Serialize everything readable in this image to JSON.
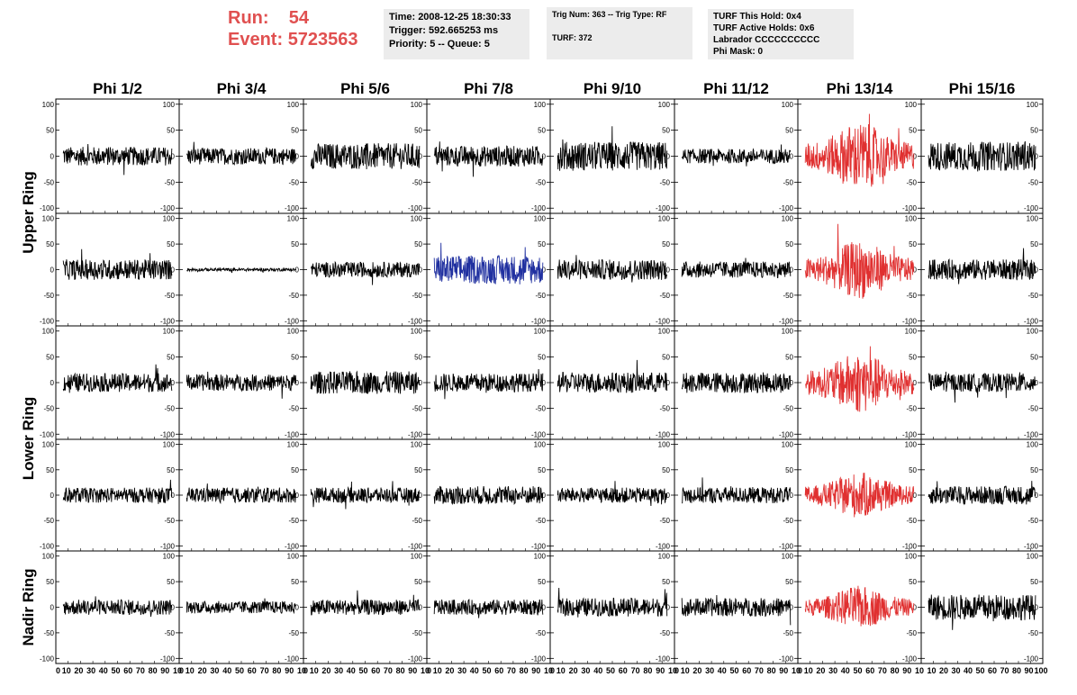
{
  "header": {
    "run_label": "Run:",
    "run_value": "54",
    "event_label": "Event:",
    "event_value": "5723563",
    "time_box": [
      "Time: 2008-12-25 18:30:33",
      "Trigger: 592.665253 ms",
      "Priority: 5 -- Queue: 5"
    ],
    "trig_box": [
      "Trig Num: 363 -- Trig Type: RF",
      "",
      "TURF: 372"
    ],
    "turf_box": [
      "TURF This Hold: 0x4",
      "TURF Active Holds: 0x6",
      "Labrador CCCCCCCCCC",
      "Phi Mask: 0"
    ]
  },
  "colors": {
    "header_text": "#e05050",
    "trace_default": "#000000",
    "trace_triggered": "#e03030",
    "trace_highlight": "#2030a0",
    "box_bg": "#ececec"
  },
  "chart_data": {
    "type": "line",
    "columns": [
      "Phi 1/2",
      "Phi 3/4",
      "Phi 5/6",
      "Phi 7/8",
      "Phi 9/10",
      "Phi 11/12",
      "Phi 13/14",
      "Phi 15/16"
    ],
    "rows": [
      "Upper Ring",
      "Upper Ring",
      "Lower Ring",
      "Lower Ring",
      "Nadir Ring"
    ],
    "row_labels": [
      "Upper Ring",
      "Lower Ring",
      "Nadir Ring"
    ],
    "xlim": [
      0,
      100
    ],
    "ylim": [
      -110,
      110
    ],
    "y_ticks": [
      "100",
      "50",
      "0",
      "-50",
      "-100"
    ],
    "x_tick_values": [
      0,
      10,
      20,
      30,
      40,
      50,
      60,
      70,
      80,
      90,
      100
    ],
    "x_ticks_compressed": [
      "0",
      "10",
      "20",
      "30",
      "40",
      "50",
      "60",
      "70",
      "80",
      "90",
      "10"
    ],
    "x_ticks_last": [
      "10",
      "20",
      "30",
      "40",
      "50",
      "60",
      "70",
      "80",
      "90",
      "100"
    ],
    "panel_amplitude": [
      [
        18,
        16,
        25,
        20,
        28,
        14,
        55,
        28
      ],
      [
        20,
        3,
        15,
        28,
        20,
        16,
        48,
        20
      ],
      [
        18,
        16,
        22,
        18,
        20,
        20,
        50,
        18
      ],
      [
        15,
        15,
        15,
        18,
        15,
        16,
        38,
        18
      ],
      [
        15,
        12,
        15,
        15,
        18,
        18,
        35,
        25
      ]
    ],
    "panel_color": [
      [
        "default",
        "default",
        "default",
        "default",
        "default",
        "default",
        "triggered",
        "default"
      ],
      [
        "default",
        "default",
        "default",
        "highlight",
        "default",
        "default",
        "triggered",
        "default"
      ],
      [
        "default",
        "default",
        "default",
        "default",
        "default",
        "default",
        "triggered",
        "default"
      ],
      [
        "default",
        "default",
        "default",
        "default",
        "default",
        "default",
        "triggered",
        "default"
      ],
      [
        "default",
        "default",
        "default",
        "default",
        "default",
        "default",
        "triggered",
        "default"
      ]
    ]
  }
}
